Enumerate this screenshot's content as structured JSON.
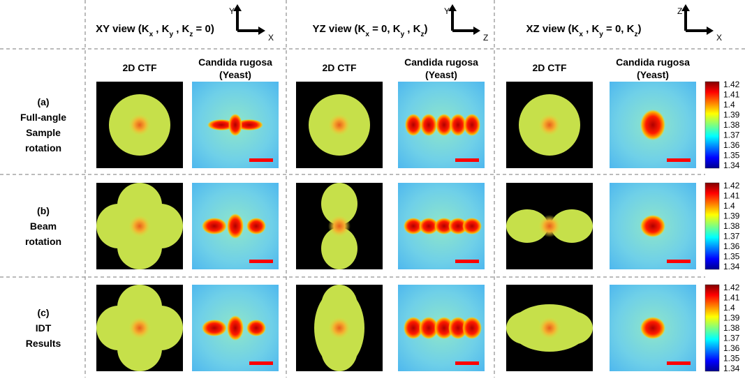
{
  "views": [
    {
      "title": [
        "XY view (K",
        "x",
        " , K",
        "y",
        " , K",
        "z",
        " = 0)"
      ],
      "axis_up": "Y",
      "axis_right": "X"
    },
    {
      "title": [
        "YZ view (K",
        "x",
        " = 0, K",
        "y",
        " , K",
        "z",
        ")"
      ],
      "axis_up": "Y",
      "axis_right": "Z"
    },
    {
      "title": [
        "XZ view (K",
        "x",
        " , K",
        "y",
        " = 0, K",
        "z",
        ")"
      ],
      "axis_up": "Z",
      "axis_right": "X"
    }
  ],
  "column_labels": {
    "ctf": "2D CTF",
    "sample": [
      "Candida rugosa",
      "(Yeast)"
    ]
  },
  "rows": [
    {
      "label": [
        "(a)",
        "Full-angle",
        "Sample",
        "rotation"
      ]
    },
    {
      "label": [
        "(b)",
        "Beam",
        "rotation"
      ]
    },
    {
      "label": [
        "(c)",
        "IDT",
        "Results"
      ]
    }
  ],
  "colorbar_ticks": [
    1.42,
    1.41,
    1.4,
    1.39,
    1.38,
    1.37,
    1.36,
    1.35,
    1.34
  ]
}
